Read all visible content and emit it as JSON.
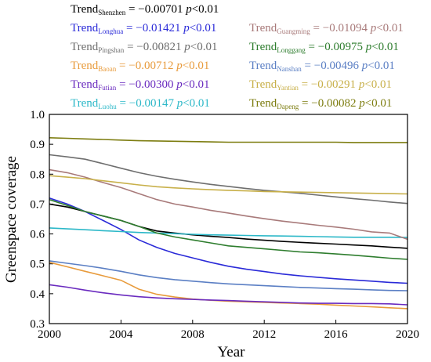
{
  "chart_data": {
    "type": "line",
    "xlabel": "Year",
    "ylabel": "Greenspace coverage",
    "xlim": [
      2000,
      2020
    ],
    "ylim": [
      0.3,
      1.0
    ],
    "x_ticks": [
      2000,
      2004,
      2008,
      2012,
      2016,
      2020
    ],
    "y_ticks": [
      0.3,
      0.4,
      0.5,
      0.6,
      0.7,
      0.8,
      0.9,
      1.0
    ],
    "x": [
      2000,
      2001,
      2002,
      2003,
      2004,
      2005,
      2006,
      2007,
      2008,
      2009,
      2010,
      2011,
      2012,
      2013,
      2014,
      2015,
      2016,
      2017,
      2018,
      2019,
      2020
    ],
    "series": [
      {
        "name": "Shenzhen",
        "subscript": "Shenzhen",
        "slope": "−0.00701",
        "color": "#000000",
        "values": [
          0.7,
          0.69,
          0.675,
          0.66,
          0.645,
          0.625,
          0.61,
          0.603,
          0.597,
          0.592,
          0.588,
          0.583,
          0.579,
          0.575,
          0.572,
          0.569,
          0.566,
          0.563,
          0.56,
          0.556,
          0.552
        ]
      },
      {
        "name": "Longhua",
        "subscript": "Longhua",
        "slope": "−0.01421",
        "color": "#2a2ad8",
        "values": [
          0.72,
          0.7,
          0.675,
          0.645,
          0.615,
          0.58,
          0.555,
          0.535,
          0.52,
          0.505,
          0.492,
          0.482,
          0.474,
          0.466,
          0.46,
          0.455,
          0.45,
          0.446,
          0.442,
          0.438,
          0.435
        ]
      },
      {
        "name": "Pingshan",
        "subscript": "Pingshan",
        "slope": "−0.00821",
        "color": "#6e6e6e",
        "values": [
          0.865,
          0.858,
          0.85,
          0.835,
          0.82,
          0.805,
          0.793,
          0.783,
          0.774,
          0.766,
          0.759,
          0.752,
          0.746,
          0.741,
          0.736,
          0.73,
          0.724,
          0.718,
          0.713,
          0.707,
          0.702
        ]
      },
      {
        "name": "Baoan",
        "subscript": "Baoan",
        "slope": "−0.00712",
        "color": "#e89b3c",
        "values": [
          0.505,
          0.49,
          0.475,
          0.46,
          0.445,
          0.415,
          0.398,
          0.389,
          0.382,
          0.378,
          0.375,
          0.373,
          0.371,
          0.369,
          0.367,
          0.365,
          0.362,
          0.359,
          0.356,
          0.353,
          0.35
        ]
      },
      {
        "name": "Futian",
        "subscript": "Futian",
        "slope": "−0.00300",
        "color": "#6a2bbf",
        "values": [
          0.43,
          0.422,
          0.412,
          0.403,
          0.396,
          0.39,
          0.386,
          0.383,
          0.381,
          0.379,
          0.377,
          0.375,
          0.373,
          0.371,
          0.369,
          0.368,
          0.368,
          0.367,
          0.367,
          0.366,
          0.363
        ]
      },
      {
        "name": "Luohu",
        "subscript": "Luohu",
        "slope": "−0.00147",
        "color": "#2cb8c8",
        "values": [
          0.62,
          0.617,
          0.614,
          0.611,
          0.608,
          0.605,
          0.603,
          0.601,
          0.599,
          0.597,
          0.596,
          0.595,
          0.594,
          0.593,
          0.592,
          0.591,
          0.59,
          0.589,
          0.589,
          0.589,
          0.588
        ]
      },
      {
        "name": "Guangming",
        "subscript": "Guangming",
        "slope": "−0.01094",
        "color": "#a87a7a",
        "values": [
          0.815,
          0.805,
          0.79,
          0.772,
          0.755,
          0.735,
          0.715,
          0.7,
          0.69,
          0.679,
          0.67,
          0.66,
          0.651,
          0.643,
          0.636,
          0.629,
          0.623,
          0.616,
          0.607,
          0.603,
          0.582
        ]
      },
      {
        "name": "Longgang",
        "subscript": "Longgang",
        "slope": "−0.00975",
        "color": "#2e7d2e",
        "values": [
          0.715,
          0.695,
          0.675,
          0.66,
          0.645,
          0.625,
          0.603,
          0.59,
          0.58,
          0.57,
          0.56,
          0.555,
          0.55,
          0.545,
          0.54,
          0.537,
          0.533,
          0.529,
          0.524,
          0.519,
          0.515
        ]
      },
      {
        "name": "Nanshan",
        "subscript": "Nanshan",
        "slope": "−0.00496",
        "color": "#5b7fc4",
        "values": [
          0.51,
          0.502,
          0.494,
          0.485,
          0.475,
          0.463,
          0.454,
          0.447,
          0.442,
          0.437,
          0.433,
          0.43,
          0.427,
          0.424,
          0.421,
          0.419,
          0.417,
          0.415,
          0.413,
          0.411,
          0.41
        ]
      },
      {
        "name": "Yantian",
        "subscript": "Yantian",
        "slope": "−0.00291",
        "color": "#c8b04a",
        "values": [
          0.795,
          0.79,
          0.785,
          0.778,
          0.771,
          0.764,
          0.758,
          0.754,
          0.751,
          0.748,
          0.746,
          0.744,
          0.742,
          0.741,
          0.74,
          0.739,
          0.738,
          0.737,
          0.736,
          0.735,
          0.734
        ]
      },
      {
        "name": "Dapeng",
        "subscript": "Dapeng",
        "slope": "−0.00082",
        "color": "#7d7d10",
        "values": [
          0.922,
          0.92,
          0.918,
          0.916,
          0.914,
          0.912,
          0.911,
          0.91,
          0.909,
          0.908,
          0.907,
          0.907,
          0.907,
          0.907,
          0.907,
          0.907,
          0.907,
          0.906,
          0.906,
          0.906,
          0.906
        ]
      }
    ],
    "legend": {
      "prefix": "Trend",
      "eq": " = ",
      "p": "p",
      "p_tail": "<0.01",
      "placement": "top"
    }
  }
}
